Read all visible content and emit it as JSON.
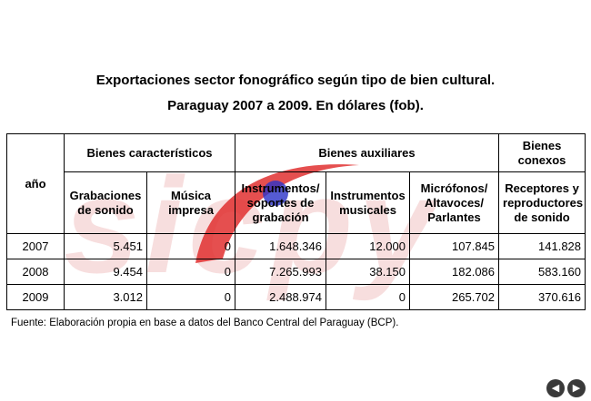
{
  "title": {
    "line1": "Exportaciones sector fonográfico según tipo de bien cultural.",
    "line2": "Paraguay 2007 a 2009. En dólares (fob)."
  },
  "table": {
    "year_header": "año",
    "groups": {
      "caracteristicos": "Bienes característicos",
      "auxiliares": "Bienes auxiliares",
      "conexos": "Bienes conexos"
    },
    "columns": [
      "Grabaciones de sonido",
      "Música impresa",
      "Instrumentos/ soportes de grabación",
      "Instrumentos musicales",
      "Micrófonos/ Altavoces/ Parlantes",
      "Receptores y reproductores de sonido"
    ],
    "rows": [
      {
        "year": "2007",
        "values": [
          "5.451",
          "0",
          "1.648.346",
          "12.000",
          "107.845",
          "141.828"
        ]
      },
      {
        "year": "2008",
        "values": [
          "9.454",
          "0",
          "7.265.993",
          "38.150",
          "182.086",
          "583.160"
        ]
      },
      {
        "year": "2009",
        "values": [
          "3.012",
          "0",
          "2.488.974",
          "0",
          "265.702",
          "370.616"
        ]
      }
    ]
  },
  "source": "Fuente: Elaboración propia en base a datos del Banco Central del Paraguay (BCP).",
  "watermark": {
    "text": "sicpy",
    "color": "#f2c4c4",
    "stroke_color": "#e03030",
    "dot_color": "#2b32c8"
  },
  "nav": {
    "prev_icon": "arrow-left-icon",
    "next_icon": "arrow-right-icon"
  }
}
